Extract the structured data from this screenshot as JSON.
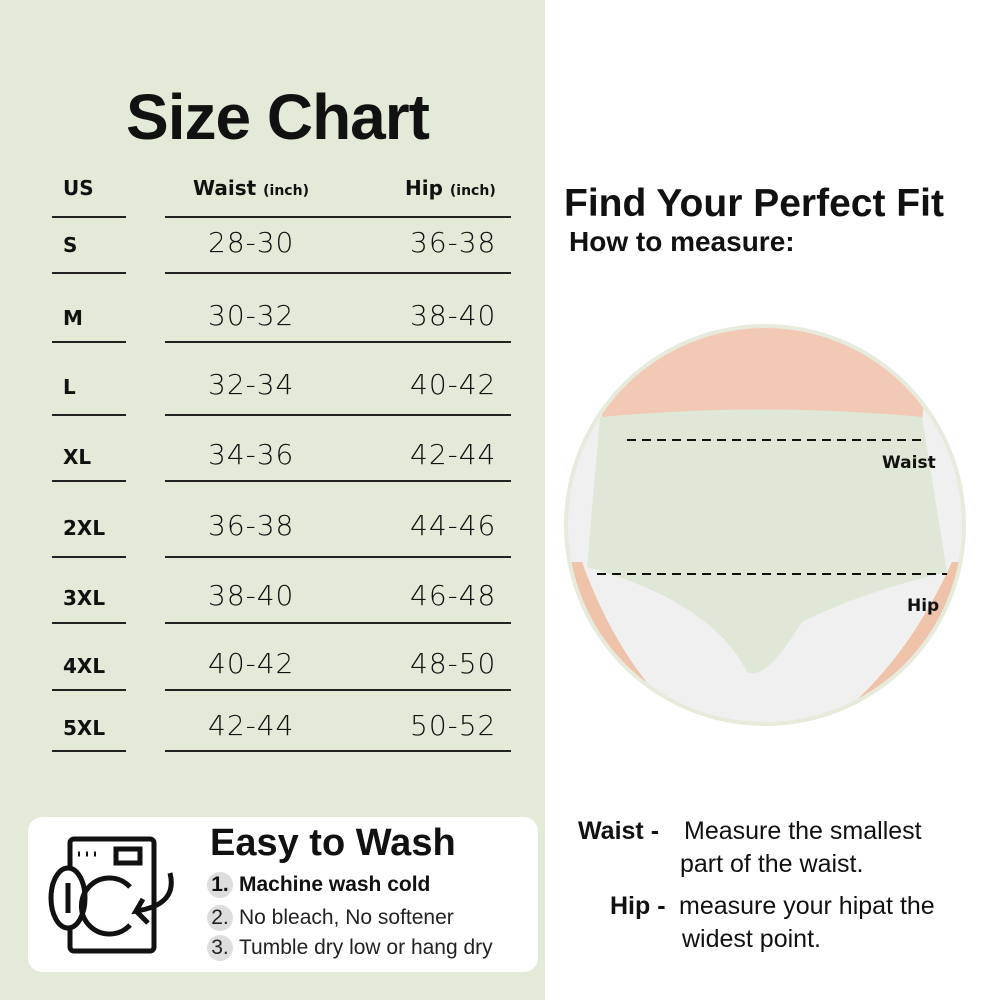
{
  "title": "Size Chart",
  "table": {
    "headers": {
      "size": "US",
      "waist": "Waist",
      "waist_unit": "(inch)",
      "hip": "Hip",
      "hip_unit": "(inch)"
    },
    "rows": [
      {
        "size": "S",
        "waist": "28-30",
        "hip": "36-38"
      },
      {
        "size": "M",
        "waist": "30-32",
        "hip": "38-40"
      },
      {
        "size": "L",
        "waist": "32-34",
        "hip": "40-42"
      },
      {
        "size": "XL",
        "waist": "34-36",
        "hip": "42-44"
      },
      {
        "size": "2XL",
        "waist": "36-38",
        "hip": "44-46"
      },
      {
        "size": "3XL",
        "waist": "38-40",
        "hip": "46-48"
      },
      {
        "size": "4XL",
        "waist": "40-42",
        "hip": "48-50"
      },
      {
        "size": "5XL",
        "waist": "42-44",
        "hip": "50-52"
      }
    ]
  },
  "wash": {
    "title": "Easy to Wash",
    "icon": "washing-machine-icon",
    "items": [
      {
        "num": "1.",
        "text": "Machine wash cold"
      },
      {
        "num": "2.",
        "text": "No bleach, No softener"
      },
      {
        "num": "3.",
        "text": "Tumble dry low or hang dry"
      }
    ]
  },
  "fit": {
    "title": "Find Your Perfect Fit",
    "subtitle": "How to measure:",
    "waist_label": "Waist",
    "hip_label": "Hip",
    "waist_term": "Waist -",
    "waist_desc1": "Measure the smallest",
    "waist_desc2": "part of the waist.",
    "hip_term": "Hip -",
    "hip_desc1": "measure your hipat the",
    "hip_desc2": "widest point."
  },
  "colors": {
    "panel": "#e3ead8",
    "garment": "#dfe8d6"
  }
}
